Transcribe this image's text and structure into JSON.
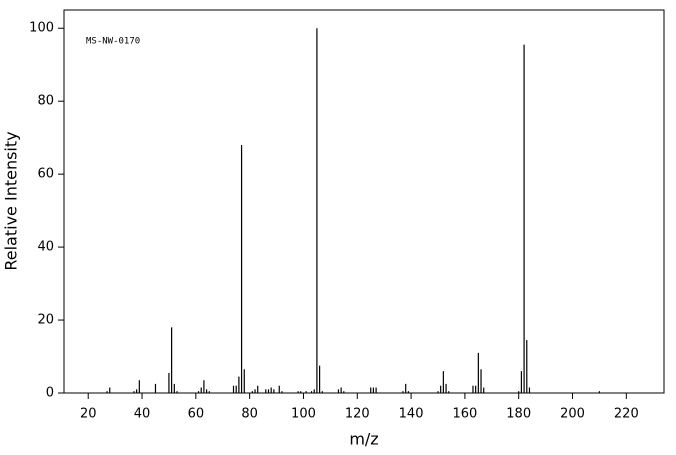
{
  "chart_data": {
    "type": "stick",
    "annotation": "MS-NW-0170",
    "xlabel": "m/z",
    "ylabel": "Relative Intensity",
    "x": [
      27,
      28,
      37,
      38,
      39,
      45,
      50,
      51,
      52,
      53,
      61,
      62,
      63,
      64,
      65,
      74,
      75,
      76,
      77,
      78,
      81,
      82,
      83,
      86,
      87,
      88,
      89,
      91,
      92,
      98,
      99,
      101,
      103,
      104,
      105,
      106,
      107,
      113,
      114,
      115,
      125,
      126,
      127,
      137,
      138,
      139,
      150,
      151,
      152,
      153,
      154,
      163,
      164,
      165,
      166,
      167,
      180,
      181,
      182,
      183,
      184,
      210
    ],
    "values": [
      0.5,
      1.5,
      0.5,
      1,
      3.5,
      2.5,
      5.5,
      18,
      2.5,
      0.5,
      0.5,
      1.5,
      3.5,
      1,
      0.5,
      2,
      2,
      4.5,
      68,
      6.5,
      0.5,
      1,
      2,
      1,
      1,
      1.5,
      1,
      2,
      0.5,
      0.5,
      0.5,
      0.5,
      0.5,
      1,
      100,
      7.5,
      0.5,
      1,
      1.5,
      0.5,
      1.5,
      1.5,
      1.5,
      0.5,
      2.5,
      0.5,
      0.5,
      2,
      6,
      2.5,
      0.5,
      2,
      2,
      11,
      6.5,
      1.5,
      0.5,
      6,
      95.5,
      14.5,
      1.5,
      0.5
    ],
    "color": "#000000",
    "xlim": [
      11,
      234
    ],
    "ylim": [
      0,
      105
    ],
    "xticks": [
      20,
      40,
      60,
      80,
      100,
      120,
      140,
      160,
      180,
      200,
      220
    ],
    "yticks": [
      0,
      20,
      40,
      60,
      80,
      100
    ]
  }
}
